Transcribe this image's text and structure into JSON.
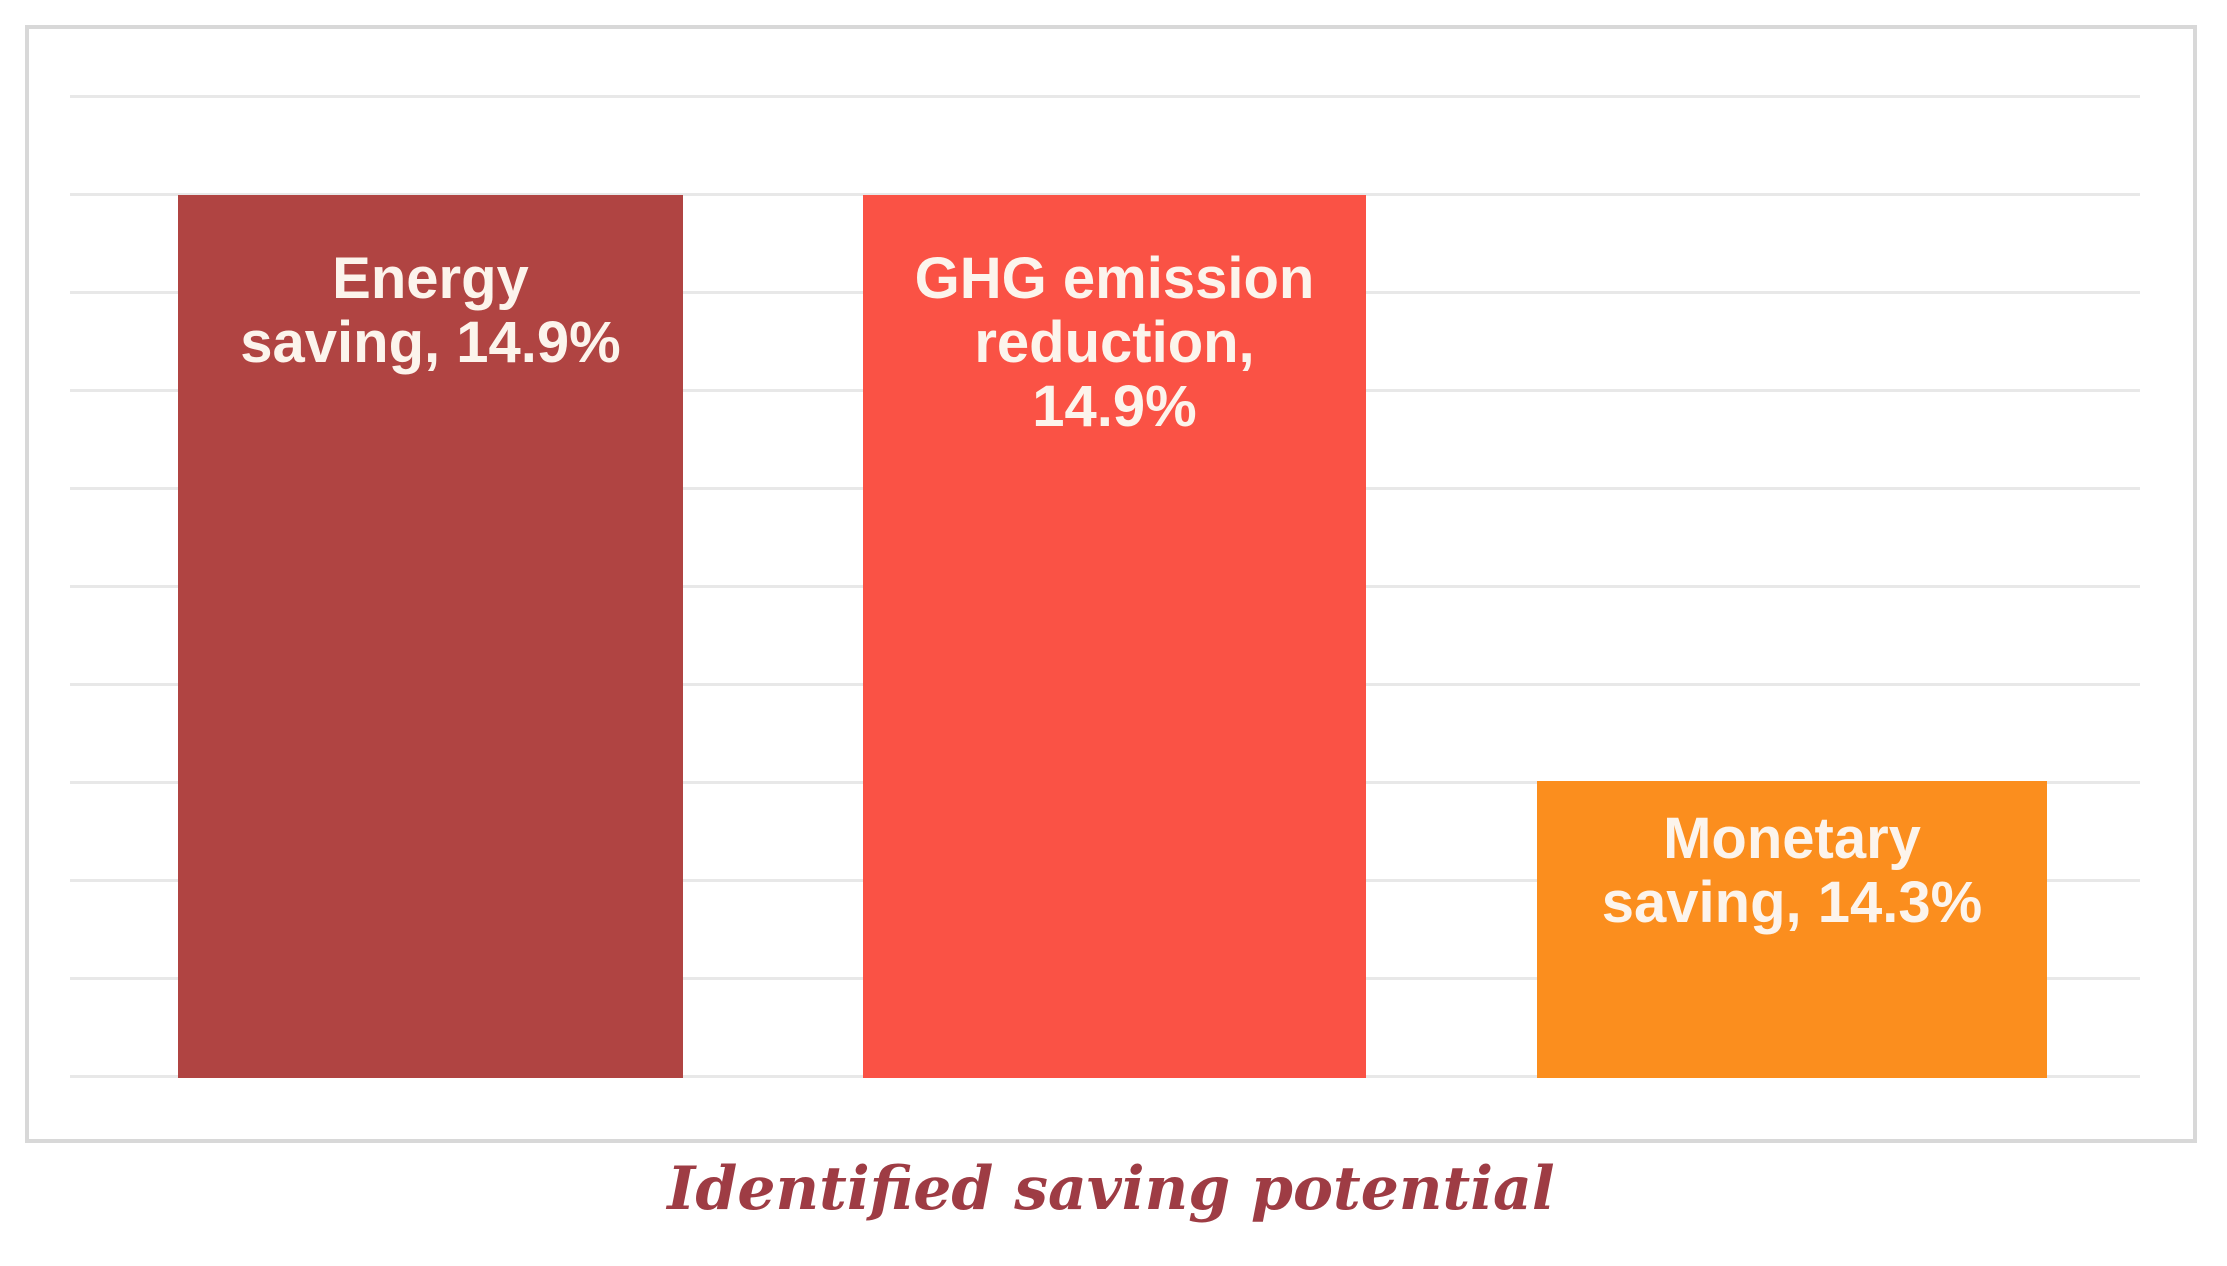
{
  "chart_data": {
    "type": "bar",
    "title": "",
    "xlabel": "Identified saving potential",
    "ylabel": "",
    "categories": [
      "Energy saving",
      "GHG emission reduction",
      "Monetary saving"
    ],
    "values": [
      14.9,
      14.9,
      14.3
    ],
    "unit": "%",
    "data_labels": [
      "Energy saving, 14.9%",
      "GHG emission reduction, 14.9%",
      "Monetary saving, 14.3%"
    ],
    "bar_heights_gridline_units": [
      9,
      9,
      3
    ],
    "gridline_count": 11,
    "grid": "horizontal",
    "y_axis_tick_labels": "none",
    "x_axis_tick_labels": "none",
    "legend_position": "none"
  },
  "bars": [
    {
      "id": "energy-saving",
      "lines": [
        "Energy",
        "saving, 14.9%"
      ],
      "color": "#b04442"
    },
    {
      "id": "ghg-emission-reduction",
      "lines": [
        "GHG emission",
        "reduction,",
        "14.9%"
      ],
      "color": "#fa5245"
    },
    {
      "id": "monetary-saving",
      "lines": [
        "Monetary",
        "saving, 14.3%"
      ],
      "color": "#fb8e1e"
    }
  ],
  "caption": {
    "text": "Identified saving potential",
    "color": "#9e3c44"
  },
  "colors": {
    "frame_border": "#d8d8d8",
    "gridline": "#e8e8e8",
    "background": "#ffffff",
    "bar_label_text": "#fcf4ec"
  }
}
